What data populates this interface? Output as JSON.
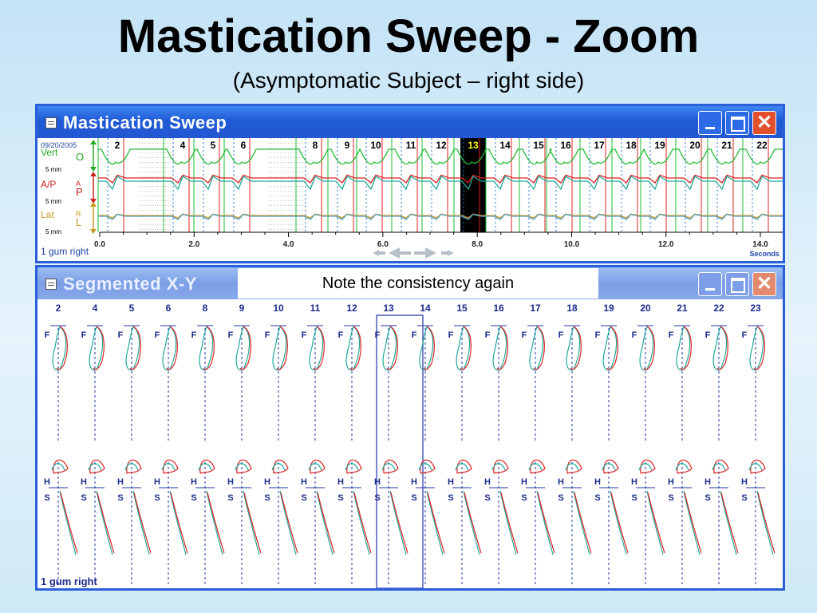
{
  "slide": {
    "title": "Mastication Sweep - Zoom",
    "subtitle": "(Asymptomatic Subject – right side)",
    "note": "Note the consistency again"
  },
  "sweep_window": {
    "title": "Mastication Sweep",
    "date": "09/20/2005",
    "channels": [
      {
        "name": "Vert",
        "scale": "5 mm",
        "name_color": "#22aa22",
        "markers": [
          "O"
        ]
      },
      {
        "name": "A/P",
        "scale": "5 mm",
        "name_color": "#cc2222",
        "markers": [
          "A",
          "P"
        ]
      },
      {
        "name": "Lat",
        "scale": "5 mm",
        "name_color": "#c89a22",
        "markers": [
          "R",
          "L"
        ]
      }
    ],
    "cycles": [
      "2",
      "4",
      "5",
      "6",
      "8",
      "9",
      "10",
      "11",
      "12",
      "13",
      "14",
      "15",
      "16",
      "17",
      "18",
      "19",
      "20",
      "21",
      "22"
    ],
    "highlighted_cycle": "13",
    "x_axis": {
      "ticks": [
        "0.0",
        "2.0",
        "4.0",
        "6.0",
        "8.0",
        "10.0",
        "12.0",
        "14.0"
      ],
      "unit": "Seconds"
    },
    "file_label": "1 gum right",
    "nav_icons": [
      "arrow-left-small-icon",
      "arrow-left-icon",
      "arrow-right-icon",
      "arrow-right-small-icon"
    ]
  },
  "xy_window": {
    "title": "Segmented X-Y",
    "cycles": [
      "2",
      "4",
      "5",
      "6",
      "8",
      "9",
      "10",
      "11",
      "12",
      "13",
      "14",
      "15",
      "16",
      "17",
      "18",
      "19",
      "20",
      "21",
      "22",
      "23"
    ],
    "highlighted_cycle": "13",
    "frontal_label": "F",
    "horizontal_label": "H",
    "sagittal_label": "S",
    "file_label": "1 gum right"
  },
  "colors": {
    "window_border": "#2a5fd8",
    "trace_green": "#22bb33",
    "trace_red": "#dd2222",
    "trace_teal": "#1fa89a",
    "trace_orange": "#c89a22",
    "highlight": "#000000",
    "highlight_label": "#ffff00"
  }
}
